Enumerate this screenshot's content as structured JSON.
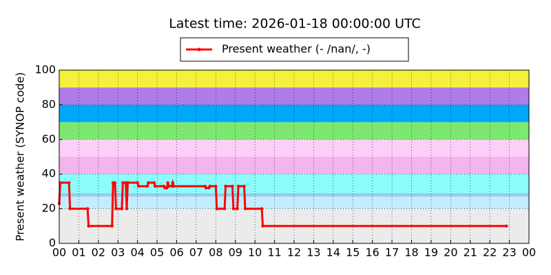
{
  "chart_data": {
    "type": "line",
    "title": "Latest time: 2026-01-18 00:00:00 UTC",
    "y_label": "Present weather (SYNOP code)",
    "x": [
      0,
      0.05,
      0.5,
      0.55,
      1.45,
      1.5,
      2.7,
      2.75,
      2.85,
      2.9,
      3.2,
      3.25,
      3.4,
      3.45,
      3.5,
      4.0,
      4.05,
      4.5,
      4.55,
      4.85,
      4.9,
      5.35,
      5.4,
      5.5,
      5.55,
      5.6,
      5.75,
      5.8,
      5.85,
      7.45,
      7.5,
      7.65,
      7.7,
      8.0,
      8.05,
      8.45,
      8.5,
      8.85,
      8.9,
      9.1,
      9.15,
      9.45,
      9.5,
      10.35,
      10.4,
      22.85
    ],
    "series": [
      {
        "name": "Present weather (- /nan/, -)",
        "color": "#ff0000",
        "values": [
          23,
          35,
          35,
          20,
          20,
          10,
          10,
          35,
          35,
          20,
          20,
          35,
          35,
          20,
          35,
          35,
          33,
          33,
          35,
          35,
          33,
          33,
          32,
          32,
          35,
          33,
          33,
          35,
          33,
          33,
          32,
          32,
          33,
          33,
          20,
          20,
          33,
          33,
          20,
          20,
          33,
          33,
          20,
          20,
          10,
          10
        ]
      }
    ],
    "bands": [
      {
        "from": 0,
        "to": 20,
        "color": "#ebebeb"
      },
      {
        "from": 20,
        "to": 27,
        "color": "#c4ecfc"
      },
      {
        "from": 27,
        "to": 29,
        "color": "#96ccf0"
      },
      {
        "from": 29,
        "to": 40,
        "color": "#8cfcfc"
      },
      {
        "from": 40,
        "to": 50,
        "color": "#f4b4ee"
      },
      {
        "from": 50,
        "to": 60,
        "color": "#fcd0f6"
      },
      {
        "from": 60,
        "to": 70,
        "color": "#7ce870"
      },
      {
        "from": 70,
        "to": 80,
        "color": "#00a8fc"
      },
      {
        "from": 80,
        "to": 90,
        "color": "#b07ce8"
      },
      {
        "from": 90,
        "to": 100,
        "color": "#f4f03c"
      }
    ],
    "xlim": [
      0,
      24
    ],
    "xticks": [
      {
        "value": 0,
        "label": "00"
      },
      {
        "value": 1,
        "label": "01"
      },
      {
        "value": 2,
        "label": "02"
      },
      {
        "value": 3,
        "label": "03"
      },
      {
        "value": 4,
        "label": "04"
      },
      {
        "value": 5,
        "label": "05"
      },
      {
        "value": 6,
        "label": "06"
      },
      {
        "value": 7,
        "label": "07"
      },
      {
        "value": 8,
        "label": "08"
      },
      {
        "value": 9,
        "label": "09"
      },
      10,
      11,
      12,
      13,
      14,
      15,
      16,
      17,
      18,
      19,
      20,
      21,
      22,
      23,
      {
        "value": 24,
        "label": "00"
      }
    ],
    "ylim": [
      0,
      100
    ],
    "yticks": [
      0,
      20,
      40,
      60,
      80,
      100
    ],
    "grid": true
  }
}
